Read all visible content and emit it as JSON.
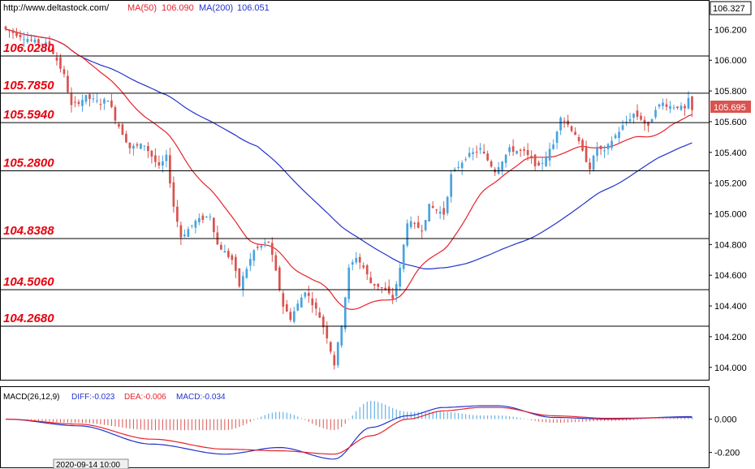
{
  "header": {
    "site": "http://www.deltastock.com/",
    "ma50_label": "MA(50)",
    "ma50_value": "106.090",
    "ma200_label": "MA(200)",
    "ma200_value": "106.051"
  },
  "macd_header": {
    "label": "MACD(26,12,9)",
    "diff": "DIFF:-0.023",
    "dea": "DEA:-0.006",
    "macd": "MACD:-0.034"
  },
  "time_label": "2020-09-14 10:00",
  "colors": {
    "up": "#4aa3df",
    "down": "#d9534f",
    "ma50": "#e8212a",
    "ma200": "#2233cc",
    "level_text": "#e8000d",
    "price_tag_bg": "#d9534f"
  },
  "chart_data": [
    {
      "type": "candlestick",
      "title": "",
      "ylim": [
        103.93,
        106.35
      ],
      "yticks": [
        "106.200",
        "106.000",
        "105.800",
        "105.600",
        "105.400",
        "105.200",
        "105.000",
        "104.800",
        "104.600",
        "104.400",
        "104.200",
        "104.000"
      ],
      "top_price": "106.327",
      "current_price": "105.695",
      "levels": [
        "106.0280",
        "105.7850",
        "105.5940",
        "105.2800",
        "104.8388",
        "104.5060",
        "104.2680"
      ],
      "anchors": [
        [
          0,
          106.2
        ],
        [
          8,
          106.12
        ],
        [
          12,
          106.1
        ],
        [
          14,
          106.0
        ],
        [
          16,
          105.9
        ],
        [
          18,
          105.7
        ],
        [
          22,
          105.76
        ],
        [
          26,
          105.72
        ],
        [
          28,
          105.75
        ],
        [
          30,
          105.62
        ],
        [
          34,
          105.43
        ],
        [
          38,
          105.45
        ],
        [
          42,
          105.3
        ],
        [
          44,
          105.37
        ],
        [
          46,
          105.05
        ],
        [
          48,
          104.85
        ],
        [
          52,
          104.95
        ],
        [
          56,
          104.99
        ],
        [
          58,
          104.8
        ],
        [
          62,
          104.7
        ],
        [
          64,
          104.53
        ],
        [
          68,
          104.76
        ],
        [
          72,
          104.82
        ],
        [
          74,
          104.62
        ],
        [
          76,
          104.4
        ],
        [
          78,
          104.32
        ],
        [
          82,
          104.5
        ],
        [
          84,
          104.42
        ],
        [
          86,
          104.33
        ],
        [
          88,
          104.2
        ],
        [
          90,
          104.02
        ],
        [
          92,
          104.28
        ],
        [
          94,
          104.64
        ],
        [
          96,
          104.72
        ],
        [
          98,
          104.65
        ],
        [
          100,
          104.55
        ],
        [
          103,
          104.52
        ],
        [
          106,
          104.45
        ],
        [
          108,
          104.64
        ],
        [
          110,
          104.95
        ],
        [
          114,
          104.9
        ],
        [
          116,
          105.05
        ],
        [
          120,
          105.0
        ],
        [
          122,
          105.25
        ],
        [
          126,
          105.37
        ],
        [
          130,
          105.42
        ],
        [
          132,
          105.35
        ],
        [
          134,
          105.28
        ],
        [
          138,
          105.42
        ],
        [
          142,
          105.4
        ],
        [
          146,
          105.3
        ],
        [
          150,
          105.45
        ],
        [
          152,
          105.64
        ],
        [
          156,
          105.52
        ],
        [
          158,
          105.4
        ],
        [
          160,
          105.3
        ],
        [
          162,
          105.43
        ],
        [
          164,
          105.4
        ],
        [
          166,
          105.48
        ],
        [
          170,
          105.6
        ],
        [
          172,
          105.65
        ],
        [
          174,
          105.62
        ],
        [
          176,
          105.56
        ],
        [
          178,
          105.69
        ],
        [
          180,
          105.72
        ],
        [
          182,
          105.7
        ],
        [
          184,
          105.7
        ],
        [
          186,
          105.68
        ],
        [
          187,
          105.74
        ],
        [
          188,
          105.67
        ]
      ],
      "macd": {
        "ylim": [
          -0.27,
          0.1
        ],
        "yticks": [
          "0.000",
          "-0.200"
        ],
        "diff": [
          [
            0,
            0.0
          ],
          [
            20,
            -0.04
          ],
          [
            40,
            -0.15
          ],
          [
            60,
            -0.21
          ],
          [
            75,
            -0.17
          ],
          [
            90,
            -0.24
          ],
          [
            100,
            -0.05
          ],
          [
            110,
            0.02
          ],
          [
            120,
            0.07
          ],
          [
            130,
            0.08
          ],
          [
            135,
            0.08
          ],
          [
            150,
            0.01
          ],
          [
            165,
            0.0
          ],
          [
            188,
            0.015
          ]
        ],
        "dea": [
          [
            0,
            0.0
          ],
          [
            20,
            -0.03
          ],
          [
            40,
            -0.12
          ],
          [
            60,
            -0.18
          ],
          [
            75,
            -0.19
          ],
          [
            90,
            -0.21
          ],
          [
            100,
            -0.1
          ],
          [
            110,
            0.0
          ],
          [
            120,
            0.05
          ],
          [
            130,
            0.07
          ],
          [
            135,
            0.07
          ],
          [
            150,
            0.02
          ],
          [
            165,
            0.005
          ],
          [
            188,
            0.01
          ]
        ]
      }
    }
  ]
}
